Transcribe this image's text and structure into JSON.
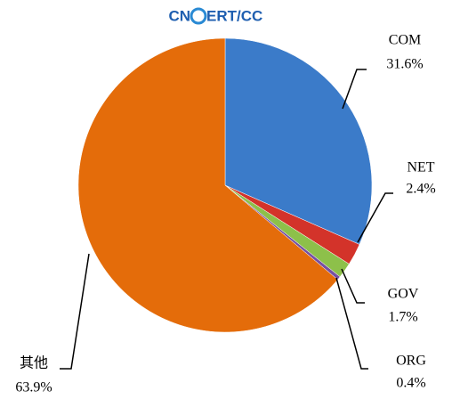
{
  "chart_data": {
    "type": "pie",
    "logo_left": "CN",
    "logo_right": "ERT/CC",
    "categories": [
      "COM",
      "NET",
      "GOV",
      "ORG",
      "其他"
    ],
    "values": [
      31.6,
      2.4,
      1.7,
      0.4,
      63.9
    ],
    "value_labels": [
      "31.6%",
      "2.4%",
      "1.7%",
      "0.4%",
      "63.9%"
    ],
    "colors": [
      "#3b7bc9",
      "#d3332a",
      "#8dc04a",
      "#7650a3",
      "#e46c0a"
    ]
  }
}
